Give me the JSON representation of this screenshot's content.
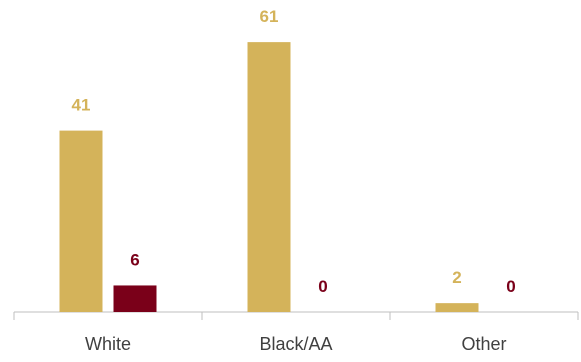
{
  "chart_data": {
    "type": "bar",
    "categories": [
      "White",
      "Black/AA",
      "Other"
    ],
    "series": [
      {
        "values": [
          41,
          61,
          2
        ],
        "color": "#d4b35a"
      },
      {
        "values": [
          6,
          0,
          0
        ],
        "color": "#7a0019"
      }
    ],
    "ylim": [
      0,
      66
    ],
    "grid": false,
    "legend": "none"
  }
}
